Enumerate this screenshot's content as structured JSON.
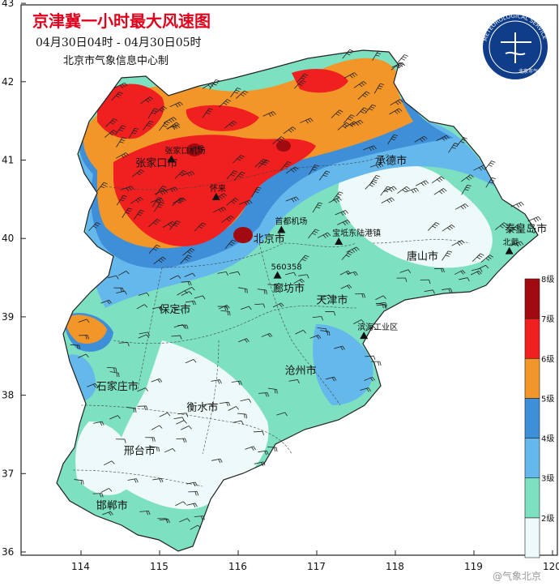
{
  "title": "京津冀一小时最大风速图",
  "time_range": "04月30日04时  -  04月30日05时",
  "credit": "北京市气象信息中心制",
  "watermark": "@气象北京",
  "logo": {
    "arc_text": "METEOROLOGICAL SERVICE",
    "name_text": "北京市气象局"
  },
  "axis": {
    "lat_ticks": [
      "43",
      "42",
      "41",
      "40",
      "39",
      "38",
      "37",
      "36"
    ],
    "lon_ticks": [
      "114",
      "115",
      "116",
      "117",
      "118",
      "119",
      "120"
    ]
  },
  "cities": [
    {
      "name": "承德市",
      "lon": 117.95,
      "lat": 41.0
    },
    {
      "name": "张家口市",
      "lon": 114.9,
      "lat": 40.97
    },
    {
      "name": "北京市",
      "lon": 116.4,
      "lat": 40.0
    },
    {
      "name": "秦皇岛市",
      "lon": 119.6,
      "lat": 40.13
    },
    {
      "name": "唐山市",
      "lon": 118.35,
      "lat": 39.78
    },
    {
      "name": "廊坊市",
      "lon": 116.65,
      "lat": 39.37
    },
    {
      "name": "天津市",
      "lon": 117.2,
      "lat": 39.22
    },
    {
      "name": "保定市",
      "lon": 115.2,
      "lat": 39.1
    },
    {
      "name": "沧州市",
      "lon": 116.8,
      "lat": 38.32
    },
    {
      "name": "石家庄市",
      "lon": 114.4,
      "lat": 38.12
    },
    {
      "name": "衡水市",
      "lon": 115.55,
      "lat": 37.85
    },
    {
      "name": "邢台市",
      "lon": 114.75,
      "lat": 37.3
    },
    {
      "name": "邯郸市",
      "lon": 114.4,
      "lat": 36.6
    }
  ],
  "stations": [
    {
      "name": "张家口机场",
      "lon": 115.15,
      "lat": 41.0
    },
    {
      "name": "怀来",
      "lon": 115.72,
      "lat": 40.52
    },
    {
      "name": "首都机场",
      "lon": 116.55,
      "lat": 40.1
    },
    {
      "name": "宝坻东陆港镇",
      "lon": 117.28,
      "lat": 39.95
    },
    {
      "name": "560358",
      "lon": 116.5,
      "lat": 39.52
    },
    {
      "name": "滨海工业区",
      "lon": 117.6,
      "lat": 38.75
    },
    {
      "name": "北戴",
      "lon": 119.45,
      "lat": 39.83
    }
  ],
  "legend": {
    "levels": [
      "2级",
      "3级",
      "4级",
      "5级",
      "6级",
      "7级",
      "8级"
    ],
    "colors": [
      "#eefafa",
      "#7de0c0",
      "#64b8ec",
      "#3e8ed8",
      "#f3962a",
      "#f02020",
      "#a10a10"
    ]
  },
  "fill_colors": {
    "level2": "#eefafa",
    "level3": "#7de0c0",
    "level4": "#64b8ec",
    "level5": "#3e8ed8",
    "level6": "#f3962a",
    "level7": "#f02020",
    "level8": "#a10a10"
  }
}
